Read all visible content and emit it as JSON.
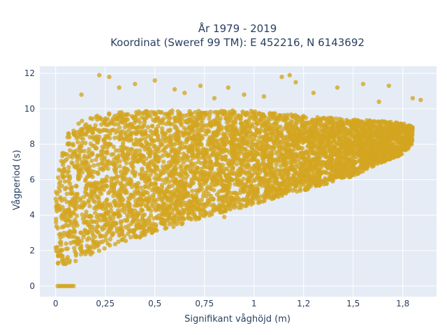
{
  "chart_data": {
    "type": "scatter",
    "title_line1": "År 1979 - 2019",
    "title_line2": "Koordinat (Sweref 99 TM): E 452216, N 6143692",
    "xlabel": "Signifikant våghöjd (m)",
    "ylabel": "Vågperiod (s)",
    "xlim": [
      -0.08,
      1.92
    ],
    "ylim": [
      -0.6,
      12.4
    ],
    "grid": true,
    "plot_background": "#e5ecf6",
    "point_color": "#d4a520",
    "x_ticks": [
      {
        "value": 0,
        "label": "0"
      },
      {
        "value": 0.25,
        "label": "0,25"
      },
      {
        "value": 0.5,
        "label": "0,5"
      },
      {
        "value": 0.75,
        "label": "0,75"
      },
      {
        "value": 1.0,
        "label": "1"
      },
      {
        "value": 1.25,
        "label": "1,2"
      },
      {
        "value": 1.5,
        "label": "1,5"
      },
      {
        "value": 1.75,
        "label": "1,8"
      }
    ],
    "y_ticks": [
      {
        "value": 0,
        "label": "0"
      },
      {
        "value": 2,
        "label": "2"
      },
      {
        "value": 4,
        "label": "4"
      },
      {
        "value": 6,
        "label": "6"
      },
      {
        "value": 8,
        "label": "8"
      },
      {
        "value": 10,
        "label": "10"
      },
      {
        "value": 12,
        "label": "12"
      }
    ],
    "envelope": {
      "x": [
        0.0,
        0.05,
        0.1,
        0.2,
        0.3,
        0.5,
        0.75,
        1.0,
        1.25,
        1.5,
        1.65,
        1.75,
        1.8
      ],
      "lower": [
        1.2,
        1.2,
        1.4,
        1.9,
        2.3,
        3.0,
        3.9,
        4.6,
        5.4,
        6.2,
        7.0,
        7.4,
        8.0
      ],
      "upper": [
        5.8,
        8.4,
        9.2,
        9.6,
        9.8,
        9.9,
        9.9,
        9.9,
        9.6,
        9.4,
        9.3,
        9.2,
        9.0
      ]
    },
    "outliers": [
      {
        "x": 0.13,
        "y": 10.8
      },
      {
        "x": 0.22,
        "y": 11.9
      },
      {
        "x": 0.27,
        "y": 11.8
      },
      {
        "x": 0.32,
        "y": 11.2
      },
      {
        "x": 0.4,
        "y": 11.4
      },
      {
        "x": 0.5,
        "y": 11.6
      },
      {
        "x": 0.6,
        "y": 11.1
      },
      {
        "x": 0.65,
        "y": 10.9
      },
      {
        "x": 0.73,
        "y": 11.3
      },
      {
        "x": 0.8,
        "y": 10.6
      },
      {
        "x": 0.87,
        "y": 11.2
      },
      {
        "x": 0.95,
        "y": 10.8
      },
      {
        "x": 1.05,
        "y": 10.7
      },
      {
        "x": 1.14,
        "y": 11.8
      },
      {
        "x": 1.18,
        "y": 11.9
      },
      {
        "x": 1.21,
        "y": 11.5
      },
      {
        "x": 1.3,
        "y": 10.9
      },
      {
        "x": 1.42,
        "y": 11.2
      },
      {
        "x": 1.55,
        "y": 11.4
      },
      {
        "x": 1.63,
        "y": 10.4
      },
      {
        "x": 1.68,
        "y": 11.3
      },
      {
        "x": 1.8,
        "y": 10.6
      },
      {
        "x": 1.84,
        "y": 10.5
      },
      {
        "x": 0.09,
        "y": 8.6
      },
      {
        "x": 0.06,
        "y": 8.4
      },
      {
        "x": 0.85,
        "y": 3.9
      },
      {
        "x": 0.7,
        "y": 4.5
      },
      {
        "x": 1.1,
        "y": 5.2
      }
    ],
    "zero_points": [
      {
        "x": 0.01,
        "y": 0
      },
      {
        "x": 0.02,
        "y": 0
      },
      {
        "x": 0.03,
        "y": 0
      },
      {
        "x": 0.04,
        "y": 0
      },
      {
        "x": 0.05,
        "y": 0
      },
      {
        "x": 0.06,
        "y": 0
      },
      {
        "x": 0.07,
        "y": 0
      },
      {
        "x": 0.08,
        "y": 0
      },
      {
        "x": 0.09,
        "y": 0
      }
    ]
  }
}
